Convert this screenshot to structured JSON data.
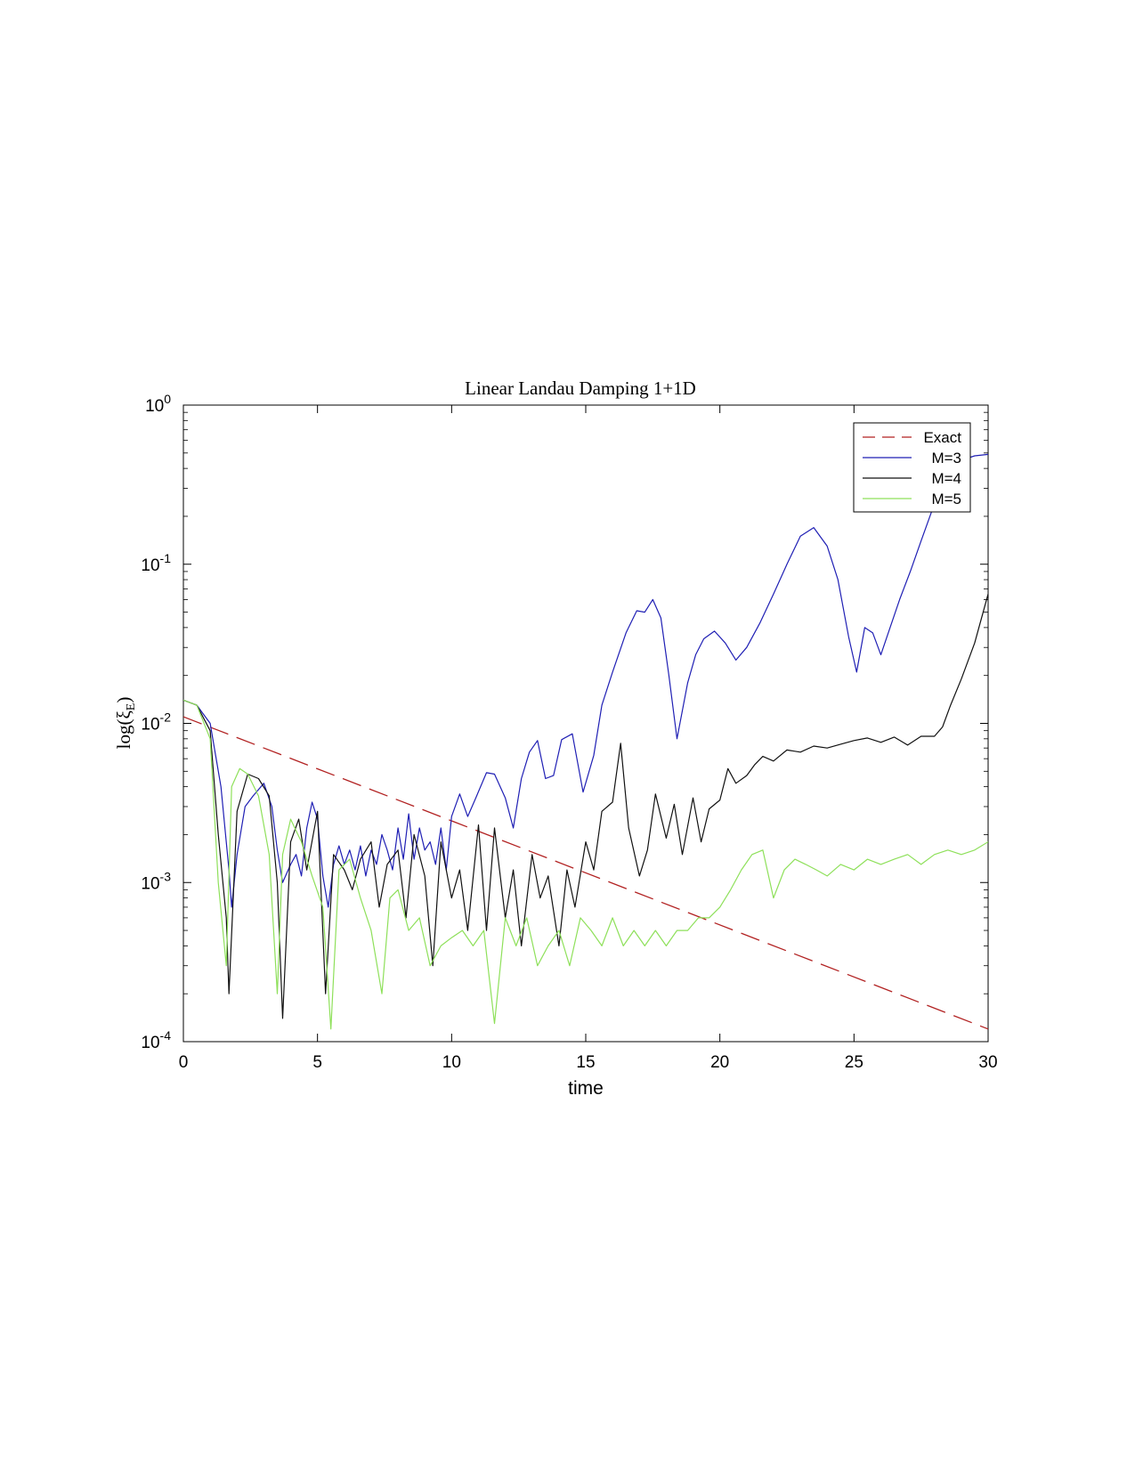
{
  "chart_data": {
    "type": "line",
    "title": "Linear Landau Damping 1+1D",
    "xlabel": "time",
    "ylabel_main": "log(ξ",
    "ylabel_sub": "E",
    "ylabel_close": ")",
    "xlim": [
      0,
      30
    ],
    "ylim": [
      0.0001,
      1
    ],
    "yscale": "log",
    "grid": false,
    "legend_position": "top-right",
    "x_ticks": [
      "0",
      "5",
      "10",
      "15",
      "20",
      "25",
      "30"
    ],
    "y_ticks": [
      {
        "base": "10",
        "exp": "-4"
      },
      {
        "base": "10",
        "exp": "-3"
      },
      {
        "base": "10",
        "exp": "-2"
      },
      {
        "base": "10",
        "exp": "-1"
      },
      {
        "base": "10",
        "exp": "0"
      }
    ],
    "series": [
      {
        "name": "Exact",
        "color": "#b22222",
        "dash": true,
        "x": [
          0,
          30
        ],
        "y": [
          0.011,
          0.00012
        ]
      },
      {
        "name": "M=3",
        "color": "#1f1fb4",
        "dash": false,
        "x": [
          0,
          0.5,
          1.0,
          1.4,
          1.7,
          1.8,
          2.0,
          2.3,
          2.6,
          3.0,
          3.3,
          3.5,
          3.7,
          4.0,
          4.2,
          4.4,
          4.6,
          4.8,
          5.0,
          5.2,
          5.4,
          5.6,
          5.8,
          6.0,
          6.2,
          6.4,
          6.6,
          6.8,
          7.0,
          7.2,
          7.4,
          7.6,
          7.8,
          8.0,
          8.2,
          8.4,
          8.6,
          8.8,
          9.0,
          9.2,
          9.4,
          9.6,
          9.8,
          10.0,
          10.3,
          10.6,
          10.9,
          11.3,
          11.6,
          12.0,
          12.3,
          12.6,
          12.9,
          13.2,
          13.5,
          13.8,
          14.1,
          14.5,
          14.9,
          15.3,
          15.6,
          16.0,
          16.5,
          16.9,
          17.2,
          17.5,
          17.8,
          18.1,
          18.4,
          18.8,
          19.1,
          19.4,
          19.8,
          20.2,
          20.6,
          21.0,
          21.5,
          22.0,
          22.5,
          23.0,
          23.5,
          24.0,
          24.4,
          24.8,
          25.1,
          25.4,
          25.7,
          26.0,
          26.3,
          26.7,
          27.1,
          27.5,
          28.0,
          28.5,
          29.0,
          29.5,
          30.0
        ],
        "y": [
          0.014,
          0.013,
          0.01,
          0.004,
          0.0012,
          0.0007,
          0.0015,
          0.003,
          0.0035,
          0.0042,
          0.003,
          0.0016,
          0.001,
          0.0013,
          0.0015,
          0.0011,
          0.0022,
          0.0032,
          0.0025,
          0.0011,
          0.0007,
          0.0013,
          0.0017,
          0.0013,
          0.0016,
          0.0012,
          0.0017,
          0.0011,
          0.0016,
          0.0013,
          0.002,
          0.0016,
          0.0012,
          0.0022,
          0.0014,
          0.0027,
          0.0014,
          0.0022,
          0.0016,
          0.0018,
          0.0013,
          0.0022,
          0.0012,
          0.0026,
          0.0036,
          0.0026,
          0.0034,
          0.0049,
          0.0048,
          0.0034,
          0.0022,
          0.0045,
          0.0066,
          0.0078,
          0.0045,
          0.0047,
          0.0079,
          0.0086,
          0.0037,
          0.0063,
          0.013,
          0.021,
          0.037,
          0.051,
          0.05,
          0.06,
          0.046,
          0.02,
          0.008,
          0.018,
          0.027,
          0.034,
          0.038,
          0.032,
          0.025,
          0.03,
          0.043,
          0.065,
          0.1,
          0.15,
          0.17,
          0.13,
          0.08,
          0.035,
          0.021,
          0.04,
          0.037,
          0.027,
          0.038,
          0.06,
          0.09,
          0.14,
          0.24,
          0.36,
          0.45,
          0.48,
          0.49
        ]
      },
      {
        "name": "M=4",
        "color": "#111111",
        "dash": false,
        "x": [
          0,
          0.5,
          1.0,
          1.3,
          1.6,
          1.7,
          2.0,
          2.4,
          2.8,
          3.2,
          3.5,
          3.7,
          4.0,
          4.3,
          4.6,
          5.0,
          5.3,
          5.6,
          6.0,
          6.3,
          6.6,
          7.0,
          7.3,
          7.6,
          8.0,
          8.3,
          8.6,
          9.0,
          9.3,
          9.6,
          10.0,
          10.3,
          10.6,
          11.0,
          11.3,
          11.6,
          12.0,
          12.3,
          12.6,
          13.0,
          13.3,
          13.6,
          14.0,
          14.3,
          14.6,
          15.0,
          15.3,
          15.6,
          16.0,
          16.3,
          16.6,
          17.0,
          17.3,
          17.6,
          18.0,
          18.3,
          18.6,
          19.0,
          19.3,
          19.6,
          20.0,
          20.3,
          20.6,
          21.0,
          21.3,
          21.6,
          22.0,
          22.5,
          23.0,
          23.5,
          24.0,
          24.5,
          25.0,
          25.5,
          26.0,
          26.5,
          27.0,
          27.5,
          28.0,
          28.3,
          28.6,
          29.0,
          29.5,
          30.0
        ],
        "y": [
          0.014,
          0.013,
          0.009,
          0.002,
          0.0006,
          0.0002,
          0.0028,
          0.0048,
          0.0045,
          0.0035,
          0.001,
          0.00014,
          0.0018,
          0.0025,
          0.0012,
          0.0028,
          0.0002,
          0.0015,
          0.0012,
          0.0009,
          0.0014,
          0.0018,
          0.0007,
          0.0013,
          0.0016,
          0.0006,
          0.002,
          0.0011,
          0.0003,
          0.0018,
          0.0008,
          0.0012,
          0.0005,
          0.0023,
          0.0005,
          0.0022,
          0.0006,
          0.0012,
          0.0004,
          0.0015,
          0.0008,
          0.0011,
          0.0004,
          0.0012,
          0.0007,
          0.0018,
          0.0012,
          0.0028,
          0.0032,
          0.0075,
          0.0022,
          0.0011,
          0.0016,
          0.0036,
          0.0019,
          0.0031,
          0.0015,
          0.0034,
          0.0018,
          0.0029,
          0.0033,
          0.0052,
          0.0042,
          0.0047,
          0.0055,
          0.0062,
          0.0058,
          0.0068,
          0.0066,
          0.0072,
          0.007,
          0.0074,
          0.0078,
          0.0081,
          0.0076,
          0.0082,
          0.0073,
          0.0083,
          0.0083,
          0.0095,
          0.013,
          0.019,
          0.032,
          0.065
        ]
      },
      {
        "name": "M=5",
        "color": "#8ee05a",
        "dash": false,
        "x": [
          0,
          0.5,
          1.0,
          1.3,
          1.6,
          1.8,
          2.1,
          2.4,
          2.8,
          3.2,
          3.5,
          3.7,
          4.0,
          4.4,
          4.8,
          5.2,
          5.5,
          5.8,
          6.2,
          6.6,
          7.0,
          7.4,
          7.7,
          8.0,
          8.4,
          8.8,
          9.2,
          9.6,
          10.0,
          10.4,
          10.8,
          11.2,
          11.6,
          12.0,
          12.4,
          12.8,
          13.2,
          13.6,
          14.0,
          14.4,
          14.8,
          15.2,
          15.6,
          16.0,
          16.4,
          16.8,
          17.2,
          17.6,
          18.0,
          18.4,
          18.8,
          19.2,
          19.6,
          20.0,
          20.4,
          20.8,
          21.2,
          21.6,
          22.0,
          22.4,
          22.8,
          23.2,
          23.6,
          24.0,
          24.5,
          25.0,
          25.5,
          26.0,
          26.5,
          27.0,
          27.5,
          28.0,
          28.5,
          29.0,
          29.5,
          30.0
        ],
        "y": [
          0.014,
          0.013,
          0.008,
          0.001,
          0.0003,
          0.004,
          0.0052,
          0.0048,
          0.0035,
          0.0015,
          0.0002,
          0.0015,
          0.0025,
          0.0018,
          0.0011,
          0.0007,
          0.00012,
          0.0012,
          0.0014,
          0.0008,
          0.0005,
          0.0002,
          0.0008,
          0.0009,
          0.0005,
          0.0006,
          0.0003,
          0.0004,
          0.00045,
          0.0005,
          0.0004,
          0.0005,
          0.00013,
          0.0006,
          0.0004,
          0.0006,
          0.0003,
          0.0004,
          0.0005,
          0.0003,
          0.0006,
          0.0005,
          0.0004,
          0.0006,
          0.0004,
          0.0005,
          0.0004,
          0.0005,
          0.0004,
          0.0005,
          0.0005,
          0.0006,
          0.0006,
          0.0007,
          0.0009,
          0.0012,
          0.0015,
          0.0016,
          0.0008,
          0.0012,
          0.0014,
          0.0013,
          0.0012,
          0.0011,
          0.0013,
          0.0012,
          0.0014,
          0.0013,
          0.0014,
          0.0015,
          0.0013,
          0.0015,
          0.0016,
          0.0015,
          0.0016,
          0.0018
        ]
      }
    ]
  }
}
